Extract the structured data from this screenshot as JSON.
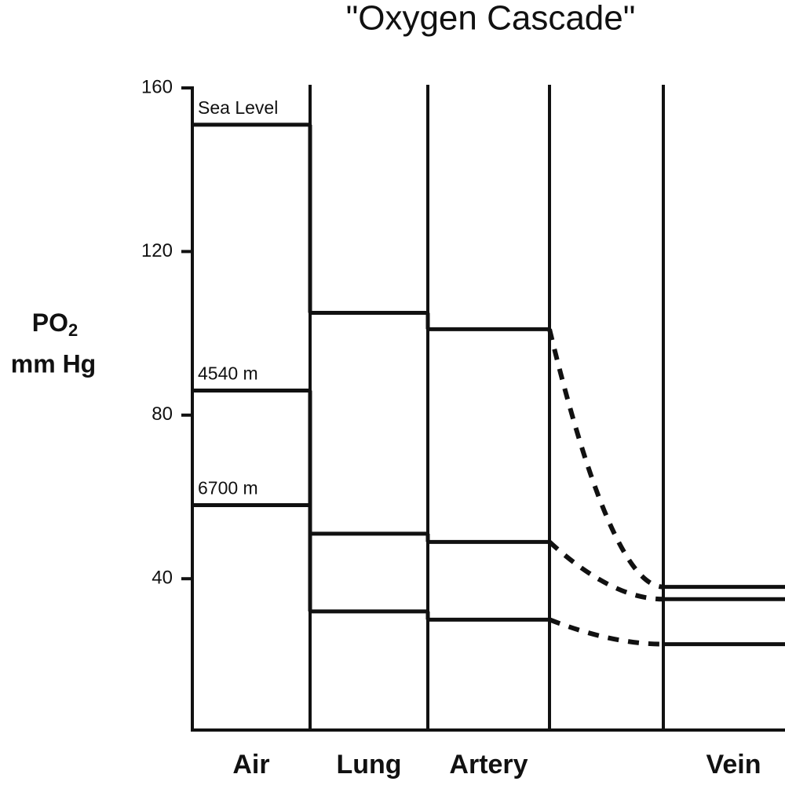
{
  "chart_data": {
    "type": "step",
    "title": "\"Oxygen Cascade\"",
    "ylabel": {
      "text": "PO",
      "subscript": "2",
      "line2": "mm Hg"
    },
    "categories": [
      "Air",
      "Lung",
      "Artery",
      null,
      "Vein"
    ],
    "series": [
      {
        "name": "Sea Level",
        "color": "#111111",
        "values": [
          151,
          105,
          101,
          null,
          38
        ]
      },
      {
        "name": "4540 m",
        "color": "#111111",
        "values": [
          86,
          51,
          49,
          null,
          35
        ]
      },
      {
        "name": "6700 m",
        "color": "#111111",
        "values": [
          58,
          32,
          30,
          null,
          24
        ]
      }
    ],
    "ylim": [
      3,
      160
    ],
    "yticks": [
      40,
      80,
      120,
      160
    ]
  }
}
